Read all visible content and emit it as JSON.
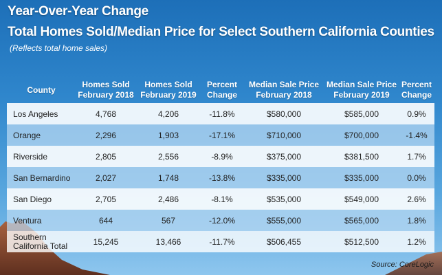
{
  "title": "Year-Over-Year Change",
  "subtitle": "Total Homes Sold/Median Price for Select Southern California Counties",
  "note": "(Reflects total home sales)",
  "headers": {
    "county": "County",
    "sold_2018_l1": "Homes Sold",
    "sold_2018_l2": "February 2018",
    "sold_2019_l1": "Homes Sold",
    "sold_2019_l2": "February 2019",
    "pct1_l1": "Percent",
    "pct1_l2": "Change",
    "price_2018_l1": "Median Sale Price",
    "price_2018_l2": "February 2018",
    "price_2019_l1": "Median Sale Price",
    "price_2019_l2": "February 2019",
    "pct2_l1": "Percent",
    "pct2_l2": "Change"
  },
  "rows": [
    {
      "county": "Los Angeles",
      "sold_2018": "4,768",
      "sold_2019": "4,206",
      "pct_sold": "-11.8%",
      "price_2018": "$580,000",
      "price_2019": "$585,000",
      "pct_price": "0.9%"
    },
    {
      "county": "Orange",
      "sold_2018": "2,296",
      "sold_2019": "1,903",
      "pct_sold": "-17.1%",
      "price_2018": "$710,000",
      "price_2019": "$700,000",
      "pct_price": "-1.4%"
    },
    {
      "county": "Riverside",
      "sold_2018": "2,805",
      "sold_2019": "2,556",
      "pct_sold": "-8.9%",
      "price_2018": "$375,000",
      "price_2019": "$381,500",
      "pct_price": "1.7%"
    },
    {
      "county": "San Bernardino",
      "sold_2018": "2,027",
      "sold_2019": "1,748",
      "pct_sold": "-13.8%",
      "price_2018": "$335,000",
      "price_2019": "$335,000",
      "pct_price": "0.0%"
    },
    {
      "county": "San Diego",
      "sold_2018": "2,705",
      "sold_2019": "2,486",
      "pct_sold": "-8.1%",
      "price_2018": "$535,000",
      "price_2019": "$549,000",
      "pct_price": "2.6%"
    },
    {
      "county": "Ventura",
      "sold_2018": "644",
      "sold_2019": "567",
      "pct_sold": "-12.0%",
      "price_2018": "$555,000",
      "price_2019": "$565,000",
      "pct_price": "1.8%"
    }
  ],
  "total": {
    "county_l1": "Southern",
    "county_l2": "California Total",
    "sold_2018": "15,245",
    "sold_2019": "13,466",
    "pct_sold": "-11.7%",
    "price_2018": "$506,455",
    "price_2019": "$512,500",
    "pct_price": "1.2%"
  },
  "source": "Source: CoreLogic",
  "colors": {
    "sky_top": "#1d6fb8",
    "sky_bottom": "#8ec6ee",
    "row_light": "#ffffff",
    "row_mid": "#bedcf4",
    "mountain": "#8a4a32"
  }
}
